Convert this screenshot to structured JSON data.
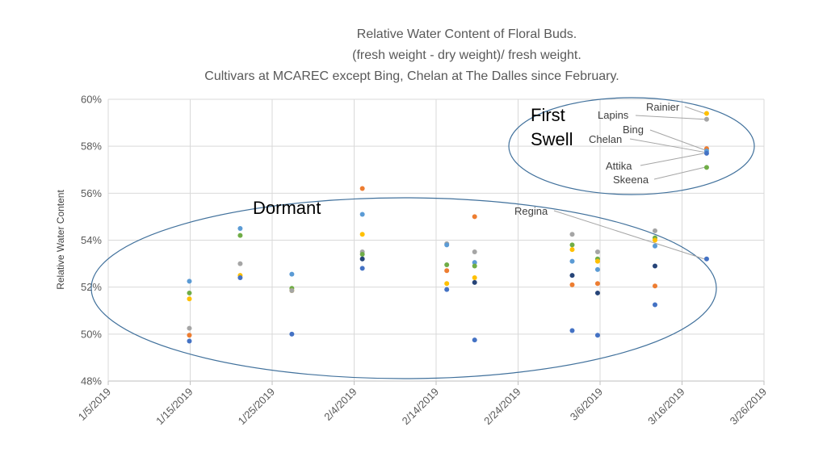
{
  "chart_data": {
    "type": "scatter",
    "title_lines": [
      "Relative Water Content of Floral Buds.",
      "(fresh weight - dry weight)/ fresh weight.",
      "Cultivars at MCAREC except Bing, Chelan at The Dalles since February."
    ],
    "ylabel": "Relative Water Content",
    "xlabel": "",
    "ylim": [
      48,
      60
    ],
    "y_ticks": [
      {
        "v": 48,
        "label": "48%"
      },
      {
        "v": 50,
        "label": "50%"
      },
      {
        "v": 52,
        "label": "52%"
      },
      {
        "v": 54,
        "label": "54%"
      },
      {
        "v": 56,
        "label": "56%"
      },
      {
        "v": 58,
        "label": "58%"
      },
      {
        "v": 60,
        "label": "60%"
      }
    ],
    "xlim_days": [
      0,
      80
    ],
    "x_ticks": [
      {
        "d": 0,
        "label": "1/5/2019"
      },
      {
        "d": 10,
        "label": "1/15/2019"
      },
      {
        "d": 20,
        "label": "1/25/2019"
      },
      {
        "d": 30,
        "label": "2/4/2019"
      },
      {
        "d": 40,
        "label": "2/14/2019"
      },
      {
        "d": 50,
        "label": "2/24/2019"
      },
      {
        "d": 60,
        "label": "3/6/2019"
      },
      {
        "d": 70,
        "label": "3/16/2019"
      },
      {
        "d": 80,
        "label": "3/26/2019"
      }
    ],
    "colors": {
      "blue": "#4472c4",
      "orange": "#ed7d31",
      "gray": "#a5a5a5",
      "gold": "#ffc000",
      "lightblue": "#5b9bd5",
      "green": "#70ad47",
      "darkblue": "#264478"
    },
    "points": [
      {
        "d": 9.9,
        "y": 52.25,
        "c": "lightblue"
      },
      {
        "d": 9.9,
        "y": 51.75,
        "c": "green"
      },
      {
        "d": 9.9,
        "y": 51.5,
        "c": "gold"
      },
      {
        "d": 9.9,
        "y": 50.25,
        "c": "gray"
      },
      {
        "d": 9.9,
        "y": 49.95,
        "c": "orange"
      },
      {
        "d": 9.9,
        "y": 49.7,
        "c": "blue"
      },
      {
        "d": 16.1,
        "y": 54.5,
        "c": "lightblue"
      },
      {
        "d": 16.1,
        "y": 54.2,
        "c": "green"
      },
      {
        "d": 16.1,
        "y": 53.0,
        "c": "gray"
      },
      {
        "d": 16.1,
        "y": 52.5,
        "c": "gold"
      },
      {
        "d": 16.1,
        "y": 52.4,
        "c": "blue"
      },
      {
        "d": 22.4,
        "y": 52.55,
        "c": "lightblue"
      },
      {
        "d": 22.4,
        "y": 51.95,
        "c": "green"
      },
      {
        "d": 22.4,
        "y": 51.85,
        "c": "gold"
      },
      {
        "d": 22.4,
        "y": 51.85,
        "c": "gray"
      },
      {
        "d": 22.4,
        "y": 50.0,
        "c": "blue"
      },
      {
        "d": 31.0,
        "y": 56.2,
        "c": "orange"
      },
      {
        "d": 31.0,
        "y": 55.1,
        "c": "lightblue"
      },
      {
        "d": 31.0,
        "y": 54.25,
        "c": "gold"
      },
      {
        "d": 31.0,
        "y": 53.5,
        "c": "gray"
      },
      {
        "d": 31.0,
        "y": 53.4,
        "c": "green"
      },
      {
        "d": 31.0,
        "y": 53.2,
        "c": "darkblue"
      },
      {
        "d": 31.0,
        "y": 52.8,
        "c": "blue"
      },
      {
        "d": 41.3,
        "y": 53.85,
        "c": "gray"
      },
      {
        "d": 41.3,
        "y": 53.8,
        "c": "lightblue"
      },
      {
        "d": 41.3,
        "y": 52.95,
        "c": "green"
      },
      {
        "d": 41.3,
        "y": 52.7,
        "c": "orange"
      },
      {
        "d": 41.3,
        "y": 52.15,
        "c": "gold"
      },
      {
        "d": 41.3,
        "y": 51.9,
        "c": "blue"
      },
      {
        "d": 44.7,
        "y": 55.0,
        "c": "orange"
      },
      {
        "d": 44.7,
        "y": 53.5,
        "c": "gray"
      },
      {
        "d": 44.7,
        "y": 53.05,
        "c": "lightblue"
      },
      {
        "d": 44.7,
        "y": 52.9,
        "c": "green"
      },
      {
        "d": 44.7,
        "y": 52.4,
        "c": "gold"
      },
      {
        "d": 44.7,
        "y": 52.2,
        "c": "darkblue"
      },
      {
        "d": 44.7,
        "y": 49.75,
        "c": "blue"
      },
      {
        "d": 56.6,
        "y": 54.25,
        "c": "gray"
      },
      {
        "d": 56.6,
        "y": 53.8,
        "c": "green"
      },
      {
        "d": 56.6,
        "y": 53.6,
        "c": "gold"
      },
      {
        "d": 56.6,
        "y": 53.1,
        "c": "lightblue"
      },
      {
        "d": 56.6,
        "y": 52.5,
        "c": "darkblue"
      },
      {
        "d": 56.6,
        "y": 52.1,
        "c": "orange"
      },
      {
        "d": 56.6,
        "y": 50.15,
        "c": "blue"
      },
      {
        "d": 59.7,
        "y": 53.5,
        "c": "gray"
      },
      {
        "d": 59.7,
        "y": 53.2,
        "c": "green"
      },
      {
        "d": 59.7,
        "y": 53.1,
        "c": "gold"
      },
      {
        "d": 59.7,
        "y": 52.75,
        "c": "lightblue"
      },
      {
        "d": 59.7,
        "y": 52.15,
        "c": "orange"
      },
      {
        "d": 59.7,
        "y": 51.75,
        "c": "darkblue"
      },
      {
        "d": 59.7,
        "y": 49.95,
        "c": "blue"
      },
      {
        "d": 66.7,
        "y": 54.4,
        "c": "gray"
      },
      {
        "d": 66.7,
        "y": 54.1,
        "c": "green"
      },
      {
        "d": 66.7,
        "y": 54.0,
        "c": "gold"
      },
      {
        "d": 66.7,
        "y": 53.75,
        "c": "lightblue"
      },
      {
        "d": 66.7,
        "y": 52.9,
        "c": "darkblue"
      },
      {
        "d": 66.7,
        "y": 52.05,
        "c": "orange"
      },
      {
        "d": 66.7,
        "y": 51.25,
        "c": "blue"
      },
      {
        "d": 73.0,
        "y": 59.4,
        "c": "gold"
      },
      {
        "d": 73.0,
        "y": 59.15,
        "c": "gray"
      },
      {
        "d": 73.0,
        "y": 57.9,
        "c": "orange"
      },
      {
        "d": 73.0,
        "y": 57.8,
        "c": "lightblue"
      },
      {
        "d": 73.0,
        "y": 57.7,
        "c": "blue"
      },
      {
        "d": 73.0,
        "y": 57.1,
        "c": "green"
      },
      {
        "d": 73.0,
        "y": 53.2,
        "c": "blue"
      }
    ],
    "annotations": {
      "dormant": "Dormant",
      "first_swell_line1": "First",
      "first_swell_line2": "Swell",
      "labels": [
        {
          "name": "rainier",
          "text": "Rainier",
          "point": {
            "d": 73.0,
            "y": 59.4
          }
        },
        {
          "name": "lapins",
          "text": "Lapins",
          "point": {
            "d": 73.0,
            "y": 59.15
          }
        },
        {
          "name": "bing",
          "text": "Bing",
          "point": {
            "d": 73.0,
            "y": 57.85
          }
        },
        {
          "name": "chelan",
          "text": "Chelan",
          "point": {
            "d": 73.0,
            "y": 57.75
          }
        },
        {
          "name": "attika",
          "text": "Attika",
          "point": {
            "d": 73.0,
            "y": 57.7
          }
        },
        {
          "name": "skeena",
          "text": "Skeena",
          "point": {
            "d": 73.0,
            "y": 57.1
          }
        },
        {
          "name": "regina",
          "text": "Regina",
          "point": {
            "d": 73.0,
            "y": 53.2
          }
        }
      ]
    }
  }
}
